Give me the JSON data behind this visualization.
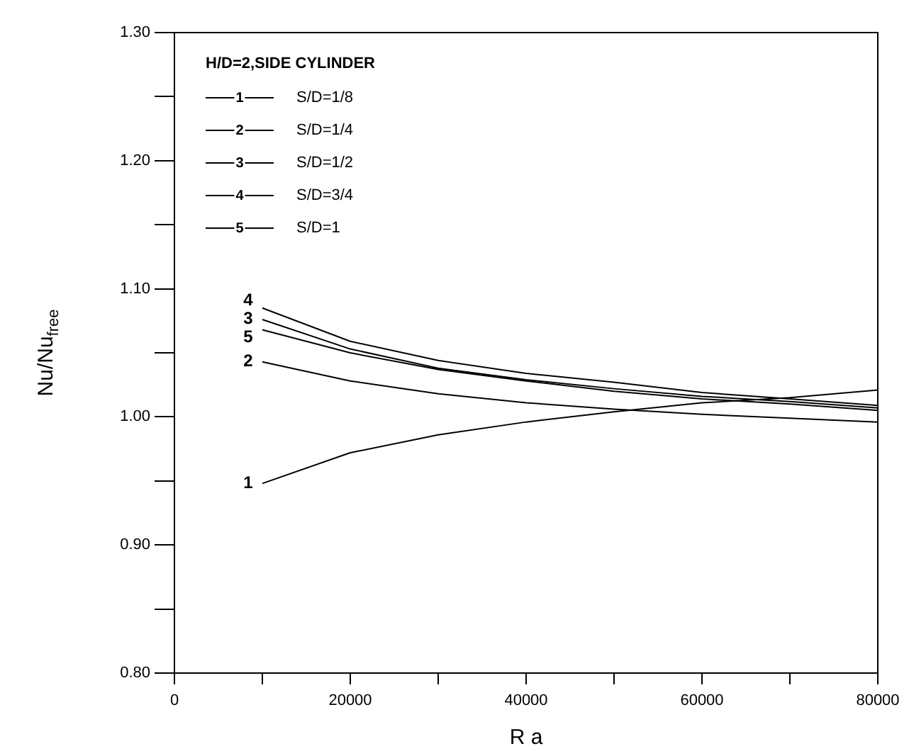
{
  "chart_data": {
    "type": "line",
    "xlabel": "R a",
    "ylabel": "Nu/Nu$_{free}$",
    "legend_title": "H/D=2,SIDE CYLINDER",
    "legend": "top left",
    "marker": "none",
    "grid": false,
    "x": [
      10000,
      20000,
      30000,
      40000,
      50000,
      60000,
      70000,
      80000
    ],
    "xlim": [
      0,
      80000
    ],
    "xticks": [
      0,
      {
        "value": 10000,
        "label": null
      },
      20000,
      {
        "value": 30000,
        "label": null
      },
      40000,
      {
        "value": 50000,
        "label": null
      },
      60000,
      {
        "value": 70000,
        "label": null
      },
      80000
    ],
    "ylim": [
      0.8,
      1.3
    ],
    "yticks": [
      {
        "value": 0.8,
        "label": "0.80"
      },
      {
        "value": 0.85,
        "label": null
      },
      {
        "value": 0.9,
        "label": "0.90"
      },
      {
        "value": 0.95,
        "label": null
      },
      {
        "value": 1.0,
        "label": "1.00"
      },
      {
        "value": 1.05,
        "label": null
      },
      {
        "value": 1.1,
        "label": "1.10"
      },
      {
        "value": 1.15,
        "label": null
      },
      {
        "value": 1.2,
        "label": "1.20"
      },
      {
        "value": 1.25,
        "label": null
      },
      {
        "value": 1.3,
        "label": "1.30"
      }
    ],
    "annotations": [
      "1",
      "2",
      "3",
      "4",
      "5"
    ],
    "series": [
      {
        "name": "S/D=1/8",
        "color": "#000000",
        "values": [
          0.948,
          0.972,
          0.986,
          0.996,
          1.004,
          1.011,
          1.015,
          1.021
        ]
      },
      {
        "name": "S/D=1/4",
        "color": "#000000",
        "values": [
          1.043,
          1.028,
          1.018,
          1.011,
          1.006,
          1.002,
          0.999,
          0.996
        ]
      },
      {
        "name": "S/D=1/2",
        "color": "#000000",
        "values": [
          1.076,
          1.053,
          1.038,
          1.029,
          1.022,
          1.016,
          1.012,
          1.007
        ]
      },
      {
        "name": "S/D=3/4",
        "color": "#000000",
        "values": [
          1.085,
          1.059,
          1.044,
          1.034,
          1.027,
          1.019,
          1.014,
          1.009
        ]
      },
      {
        "name": "S/D=1",
        "color": "#000000",
        "values": [
          1.068,
          1.05,
          1.037,
          1.028,
          1.02,
          1.014,
          1.01,
          1.005
        ]
      }
    ]
  }
}
